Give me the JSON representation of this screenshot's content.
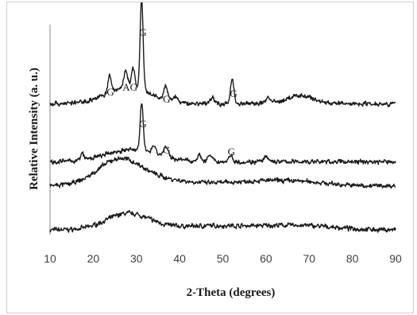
{
  "chart_data": {
    "type": "line",
    "title": "",
    "xlabel": "2-Theta (degrees)",
    "ylabel": "Relative Intensity (a. u.)",
    "xlim": [
      10,
      90
    ],
    "x_ticks": [
      "10",
      "20",
      "30",
      "40",
      "50",
      "60",
      "70",
      "80",
      "90"
    ],
    "y_ticks": false,
    "grid": false,
    "legend": "none",
    "series": [
      {
        "baseline": 0.0,
        "features": [
          {
            "x": 28,
            "h": 0.08,
            "w": 5
          },
          {
            "x": 48,
            "h": 0.02,
            "w": 10
          },
          {
            "x": 68,
            "h": 0.02,
            "w": 8
          }
        ]
      },
      {
        "baseline": 0.22,
        "features": [
          {
            "x": 26,
            "h": 0.12,
            "w": 5
          },
          {
            "x": 35,
            "h": 0.03,
            "w": 8
          },
          {
            "x": 57,
            "h": 0.02,
            "w": 6
          },
          {
            "x": 68,
            "h": 0.02,
            "w": 6
          }
        ]
      },
      {
        "baseline": 0.34,
        "features": [
          {
            "x": 29,
            "h": 0.06,
            "w": 6
          },
          {
            "x": 31.2,
            "h": 0.24,
            "w": 0.35
          },
          {
            "x": 17.5,
            "h": 0.03,
            "w": 0.4
          },
          {
            "x": 34,
            "h": 0.04,
            "w": 0.5
          },
          {
            "x": 36.8,
            "h": 0.05,
            "w": 0.5
          },
          {
            "x": 44.5,
            "h": 0.03,
            "w": 0.5
          },
          {
            "x": 47,
            "h": 0.03,
            "w": 0.5
          },
          {
            "x": 51.8,
            "h": 0.03,
            "w": 0.5
          },
          {
            "x": 60,
            "h": 0.02,
            "w": 0.6
          }
        ]
      },
      {
        "baseline": 0.63,
        "features": [
          {
            "x": 28,
            "h": 0.08,
            "w": 5
          },
          {
            "x": 23.8,
            "h": 0.08,
            "w": 0.4
          },
          {
            "x": 27.5,
            "h": 0.08,
            "w": 0.45
          },
          {
            "x": 29.2,
            "h": 0.1,
            "w": 0.4
          },
          {
            "x": 31.2,
            "h": 0.45,
            "w": 0.35
          },
          {
            "x": 36.8,
            "h": 0.07,
            "w": 0.45
          },
          {
            "x": 39,
            "h": 0.03,
            "w": 0.5
          },
          {
            "x": 47.5,
            "h": 0.03,
            "w": 0.5
          },
          {
            "x": 52.2,
            "h": 0.12,
            "w": 0.4
          },
          {
            "x": 60.5,
            "h": 0.03,
            "w": 0.6
          },
          {
            "x": 68,
            "h": 0.04,
            "w": 3
          }
        ]
      }
    ],
    "annotations": [
      {
        "text": "G",
        "x": 31.5
      },
      {
        "text": "G",
        "x": 24
      },
      {
        "text": "AG",
        "x": 28.5
      },
      {
        "text": "G",
        "x": 37
      },
      {
        "text": "G",
        "x": 52.5
      },
      {
        "text": "G",
        "x": 31.5
      },
      {
        "text": "G",
        "x": 37
      },
      {
        "text": "G",
        "x": 52
      }
    ]
  }
}
